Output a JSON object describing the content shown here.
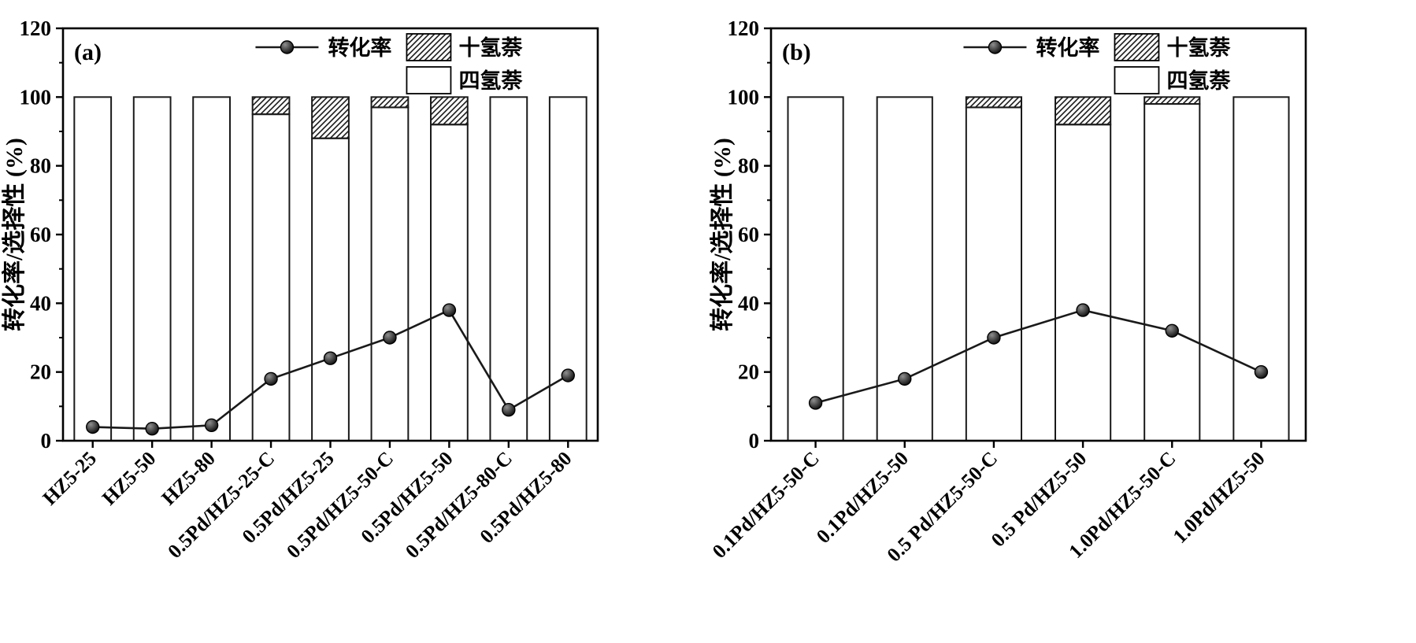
{
  "figure": {
    "background": "#ffffff",
    "line_color": "#1a1a1a",
    "bar_fill": "#ffffff",
    "bar_stroke": "#1a1a1a",
    "text_color": "#000000"
  },
  "chart_data": [
    {
      "type": "bar+line",
      "panel_label": "(a)",
      "title": "",
      "xlabel": "",
      "ylabel": "转化率/选择性 (%)",
      "ylim": [
        0,
        120
      ],
      "yticks": [
        0,
        20,
        40,
        60,
        80,
        100,
        120
      ],
      "grid": false,
      "legend_position": "top-center-inside",
      "categories": [
        "HZ5-25",
        "HZ5-50",
        "HZ5-80",
        "0.5Pd/HZ5-25-C",
        "0.5Pd/HZ5-25",
        "0.5Pd/HZ5-50-C",
        "0.5Pd/HZ5-50",
        "0.5Pd/HZ5-80-C",
        "0.5Pd/HZ5-80"
      ],
      "series": [
        {
          "name": "四氢萘",
          "type": "bar",
          "style": "open",
          "values": [
            100,
            100,
            100,
            95,
            88,
            97,
            92,
            100,
            100
          ]
        },
        {
          "name": "十氢萘",
          "type": "bar",
          "style": "hatched",
          "values": [
            0,
            0,
            0,
            5,
            12,
            3,
            8,
            0,
            0
          ]
        },
        {
          "name": "转化率",
          "type": "line",
          "values": [
            4,
            3.5,
            4.5,
            18,
            24,
            30,
            38,
            9,
            19
          ]
        }
      ]
    },
    {
      "type": "bar+line",
      "panel_label": "(b)",
      "title": "",
      "xlabel": "",
      "ylabel": "转化率/选择性 (%)",
      "ylim": [
        0,
        120
      ],
      "yticks": [
        0,
        20,
        40,
        60,
        80,
        100,
        120
      ],
      "grid": false,
      "legend_position": "top-center-inside",
      "categories": [
        "0.1Pd/HZ5-50-C",
        "0.1Pd/HZ5-50",
        "0.5 Pd/HZ5-50-C",
        "0.5 Pd/HZ5-50",
        "1.0Pd/HZ5-50-C",
        "1.0Pd/HZ5-50"
      ],
      "series": [
        {
          "name": "四氢萘",
          "type": "bar",
          "style": "open",
          "values": [
            100,
            100,
            97,
            92,
            98,
            100
          ]
        },
        {
          "name": "十氢萘",
          "type": "bar",
          "style": "hatched",
          "values": [
            0,
            0,
            3,
            8,
            2,
            0
          ]
        },
        {
          "name": "转化率",
          "type": "line",
          "values": [
            11,
            18,
            30,
            38,
            32,
            20
          ]
        }
      ]
    }
  ]
}
